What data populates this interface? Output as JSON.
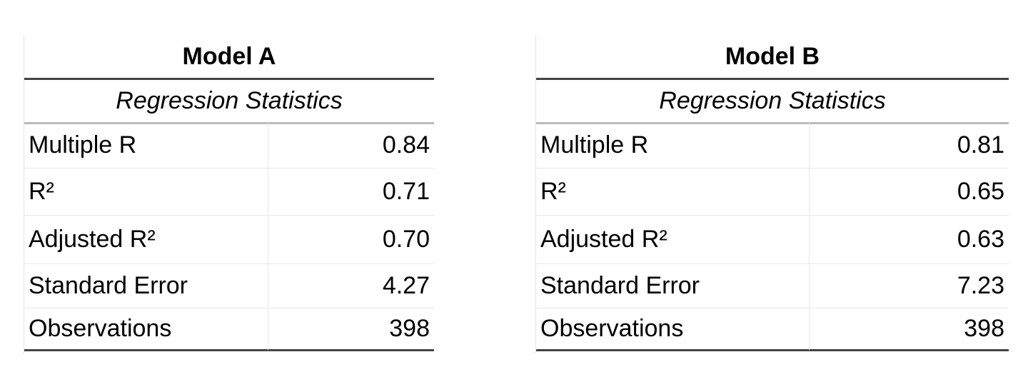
{
  "tables": [
    {
      "title": "Model A",
      "subtitle": "Regression Statistics",
      "rows": [
        [
          "Multiple R",
          "0.84"
        ],
        [
          "R²",
          "0.71"
        ],
        [
          "Adjusted R²",
          "0.70"
        ],
        [
          "Standard Error",
          "4.27"
        ],
        [
          "Observations",
          "398"
        ]
      ]
    },
    {
      "title": "Model B",
      "subtitle": "Regression Statistics",
      "rows": [
        [
          "Multiple R",
          "0.81"
        ],
        [
          "R²",
          "0.65"
        ],
        [
          "Adjusted R²",
          "0.63"
        ],
        [
          "Standard Error",
          "7.23"
        ],
        [
          "Observations",
          "398"
        ]
      ]
    }
  ]
}
